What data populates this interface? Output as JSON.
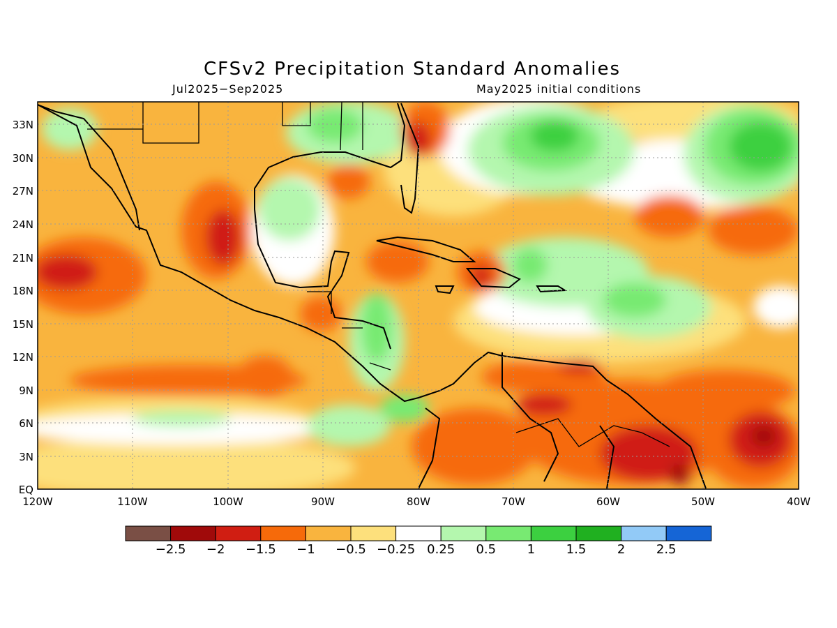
{
  "title": "CFSv2 Precipitation Standard Anomalies",
  "valid_period": "Jul2025−Sep2025",
  "initial_conditions": "May2025 initial conditions",
  "map": {
    "lat_labels": [
      "33N",
      "30N",
      "27N",
      "24N",
      "21N",
      "18N",
      "15N",
      "12N",
      "9N",
      "6N",
      "3N",
      "EQ"
    ],
    "lon_labels": [
      "120W",
      "110W",
      "100W",
      "90W",
      "80W",
      "70W",
      "60W",
      "50W",
      "40W"
    ],
    "lat_range": [
      0,
      35
    ],
    "lon_range": [
      -120,
      -40
    ],
    "grid": "dotted"
  },
  "colorbar": {
    "colors": [
      "#7a4f45",
      "#a00a0a",
      "#d01e12",
      "#f66a0a",
      "#f9b43e",
      "#fde07c",
      "#ffffff",
      "#b4f7ae",
      "#78ea72",
      "#3cd040",
      "#20b020",
      "#92caf7",
      "#1565d6"
    ],
    "labels": [
      "−2.5",
      "−2",
      "−1.5",
      "−1",
      "−0.5",
      "−0.25",
      "0.25",
      "0.5",
      "1",
      "1.5",
      "2",
      "2.5"
    ]
  },
  "legend_colors": {
    "dry_strong": "#d01e12",
    "dry": "#f66a0a",
    "dry_weak": "#f9b43e",
    "dry_slight": "#fde07c",
    "wet_slight": "#b4f7ae",
    "wet": "#78ea72",
    "wet_strong": "#3cd040",
    "wet_very": "#20b020"
  }
}
